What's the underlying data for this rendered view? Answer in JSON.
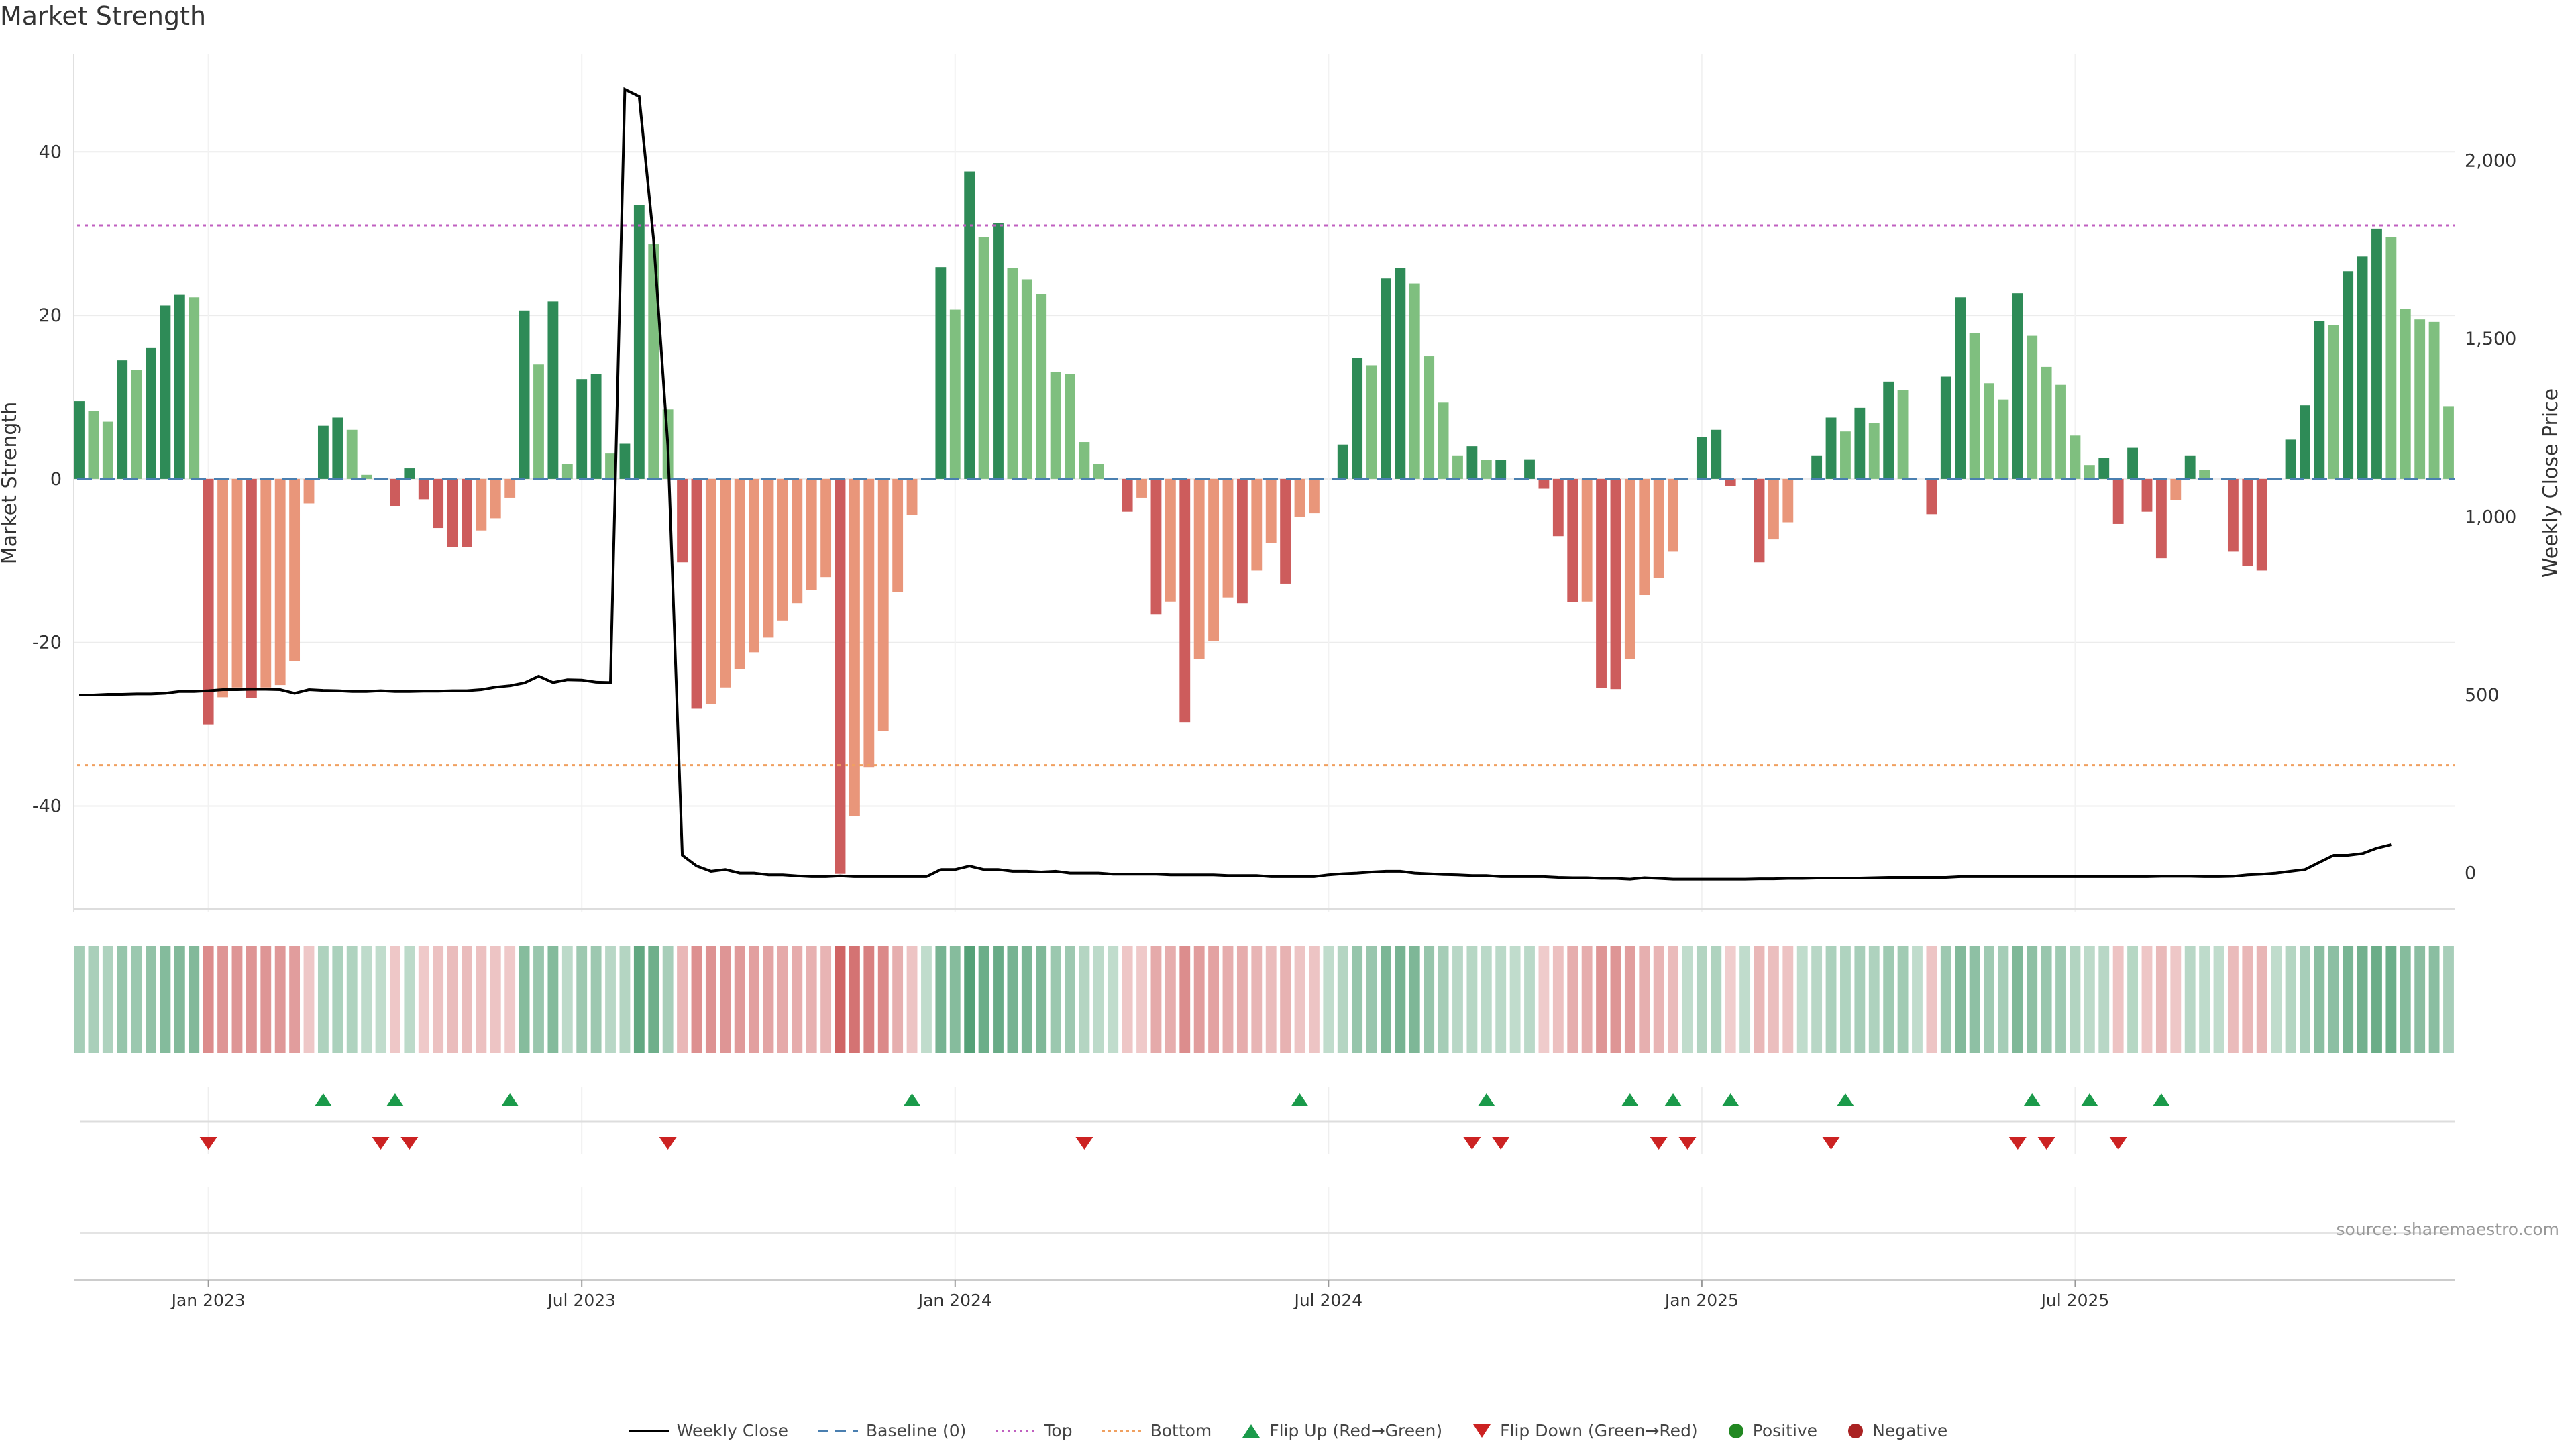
{
  "title": "Market Strength",
  "source": "source: sharemaestro.com",
  "colors": {
    "pos_strong": "#2e8b57",
    "pos_weak": "#7fbf7f",
    "neg_strong": "#cd5c5c",
    "neg_weak": "#e9967a",
    "top_line": "#c060c0",
    "bottom_line": "#f0a060",
    "baseline": "#4a7fb0",
    "price_line": "#000000",
    "flip_up": "#1a9a4a",
    "flip_down": "#cc2222",
    "positive": "#228822",
    "negative": "#aa2222"
  },
  "chart_data": {
    "type": "bar",
    "title": "Market Strength",
    "xlabel": "",
    "ylabel": "Market Strength",
    "y2label": "Weekly Close Price",
    "ylim": [
      -53,
      52
    ],
    "y2lim": [
      -110,
      2300
    ],
    "yticks": [
      -40,
      -20,
      0,
      20,
      40
    ],
    "y2ticks": [
      0,
      500,
      1000,
      1500,
      2000
    ],
    "y2tick_labels": [
      "0",
      "500",
      "1,000",
      "1,500",
      "2,000"
    ],
    "x_tick_labels": [
      "Jan 2023",
      "Jul 2023",
      "Jan 2024",
      "Jul 2024",
      "Jan 2025",
      "Jul 2025"
    ],
    "x_tick_weeks": [
      9,
      35,
      61,
      87,
      113,
      139
    ],
    "top_level": 31,
    "bottom_level": -35,
    "strength": [
      9.5,
      8.3,
      7,
      14.5,
      13.3,
      16,
      21.2,
      22.5,
      22.2,
      -30,
      -26.7,
      -25.5,
      -26.8,
      -25.5,
      -25.2,
      -22.3,
      -3,
      6.5,
      7.5,
      6,
      0.5,
      0,
      -3.3,
      1.3,
      -2.5,
      -6,
      -8.3,
      -8.3,
      -6.3,
      -4.8,
      -2.3,
      20.6,
      14,
      21.7,
      1.8,
      12.2,
      12.8,
      3.1,
      4.3,
      33.5,
      28.7,
      8.5,
      -10.2,
      -28.1,
      -27.5,
      -25.5,
      -23.3,
      -21.2,
      -19.4,
      -17.3,
      -15.2,
      -13.6,
      -12,
      -48.3,
      -41.2,
      -35.3,
      -30.8,
      -13.8,
      -4.4,
      0,
      25.9,
      20.7,
      37.6,
      29.6,
      31.3,
      25.8,
      24.4,
      22.6,
      13.1,
      12.8,
      4.5,
      1.8,
      0,
      -4,
      -2.3,
      -16.6,
      -15,
      -29.8,
      -22,
      -19.8,
      -14.5,
      -15.2,
      -11.2,
      -7.8,
      -12.8,
      -4.6,
      -4.2,
      0,
      4.2,
      14.8,
      13.9,
      24.5,
      25.8,
      23.9,
      15,
      9.4,
      2.8,
      4,
      2.3,
      2.3,
      0,
      2.4,
      -1.2,
      -7,
      -15.1,
      -15,
      -25.6,
      -25.7,
      -22,
      -14.2,
      -12.1,
      -8.9,
      0,
      5.1,
      6,
      -0.9,
      0,
      -10.2,
      -7.4,
      -5.3,
      0,
      2.8,
      7.5,
      5.8,
      8.7,
      6.8,
      11.9,
      10.9,
      0,
      -4.3,
      12.5,
      22.2,
      17.8,
      11.7,
      9.7,
      22.7,
      17.5,
      13.7,
      11.5,
      5.3,
      1.7,
      2.6,
      -5.5,
      3.8,
      -4,
      -9.7,
      -2.6,
      2.8,
      1.1,
      0,
      -8.9,
      -10.6,
      -11.2,
      0,
      4.8,
      9,
      19.3,
      18.8,
      25.4,
      27.2,
      30.6,
      29.6,
      20.8,
      19.5,
      19.2,
      8.9
    ],
    "weekly_close": [
      500,
      500,
      502,
      502,
      503,
      503,
      505,
      510,
      510,
      512,
      515,
      515,
      516,
      516,
      515,
      505,
      515,
      513,
      512,
      510,
      510,
      512,
      510,
      510,
      511,
      511,
      512,
      512,
      515,
      522,
      526,
      534,
      553,
      535,
      543,
      542,
      536,
      535,
      2200,
      2180,
      1780,
      1200,
      50,
      20,
      5,
      10,
      0,
      0,
      -5,
      -5,
      -8,
      -10,
      -10,
      -8,
      -10,
      -10,
      -10,
      -10,
      -10,
      -10,
      10,
      10,
      20,
      10,
      10,
      5,
      5,
      3,
      5,
      0,
      0,
      0,
      -3,
      -3,
      -3,
      -3,
      -5,
      -5,
      -5,
      -5,
      -7,
      -7,
      -7,
      -10,
      -10,
      -10,
      -10,
      -5,
      -2,
      0,
      3,
      5,
      5,
      0,
      -2,
      -4,
      -5,
      -7,
      -7,
      -10,
      -10,
      -10,
      -10,
      -12,
      -13,
      -13,
      -15,
      -15,
      -17,
      -13,
      -15,
      -17,
      -17,
      -17,
      -17,
      -17,
      -17,
      -16,
      -16,
      -15,
      -15,
      -14,
      -14,
      -14,
      -14,
      -13,
      -12,
      -12,
      -12,
      -12,
      -12,
      -10,
      -10,
      -10,
      -10,
      -10,
      -10,
      -10,
      -10,
      -10,
      -10,
      -10,
      -10,
      -10,
      -10,
      -9,
      -9,
      -9,
      -10,
      -10,
      -9,
      -5,
      -3,
      0,
      5,
      10,
      30,
      50,
      50,
      55,
      70,
      80
    ],
    "flip_up_weeks": [
      17,
      22,
      30,
      58,
      85,
      98,
      108,
      111,
      115,
      123,
      136,
      140,
      145
    ],
    "flip_down_weeks": [
      9,
      21,
      23,
      41,
      70,
      97,
      99,
      110,
      112,
      122,
      135,
      137,
      142
    ],
    "legend": [
      {
        "label": "Weekly Close",
        "icon": "line-solid"
      },
      {
        "label": "Baseline (0)",
        "icon": "line-dashed"
      },
      {
        "label": "Top",
        "icon": "line-dotted-top"
      },
      {
        "label": "Bottom",
        "icon": "line-dotted-bottom"
      },
      {
        "label": "Flip Up (Red→Green)",
        "icon": "triangle-up"
      },
      {
        "label": "Flip Down (Green→Red)",
        "icon": "triangle-down"
      },
      {
        "label": "Positive",
        "icon": "dot-positive"
      },
      {
        "label": "Negative",
        "icon": "dot-negative"
      }
    ]
  }
}
